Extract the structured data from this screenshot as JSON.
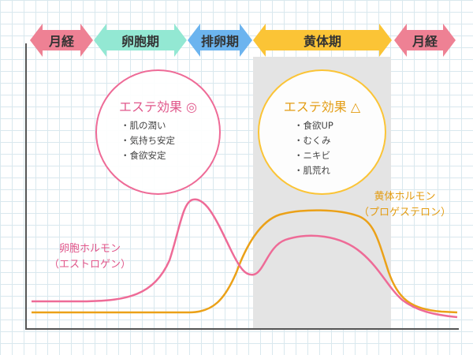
{
  "colors": {
    "menses": "#ee8194",
    "follicular": "#93e8d3",
    "ovulation": "#6cb4ef",
    "luteal": "#fbc436",
    "estrogen": "#ee6b97",
    "progesterone": "#eba118",
    "luteal_band": "#e4e4e4"
  },
  "phases": [
    {
      "label": "月経",
      "color": "menses"
    },
    {
      "label": "卵胞期",
      "color": "follicular"
    },
    {
      "label": "排卵期",
      "color": "ovulation"
    },
    {
      "label": "黄体期",
      "color": "luteal"
    },
    {
      "label": "月経",
      "color": "menses"
    }
  ],
  "circles": {
    "follicular": {
      "title": "エステ効果 ◎",
      "items": [
        "肌の潤い",
        "気持ち安定",
        "食欲安定"
      ]
    },
    "luteal": {
      "title": "エステ効果 △",
      "items": [
        "食欲UP",
        "むくみ",
        "ニキビ",
        "肌荒れ"
      ]
    }
  },
  "labels": {
    "estrogen": [
      "卵胞ホルモン",
      "（エストロゲン）"
    ],
    "progesterone": [
      "黄体ホルモン",
      "（プロゲステロン）"
    ]
  }
}
